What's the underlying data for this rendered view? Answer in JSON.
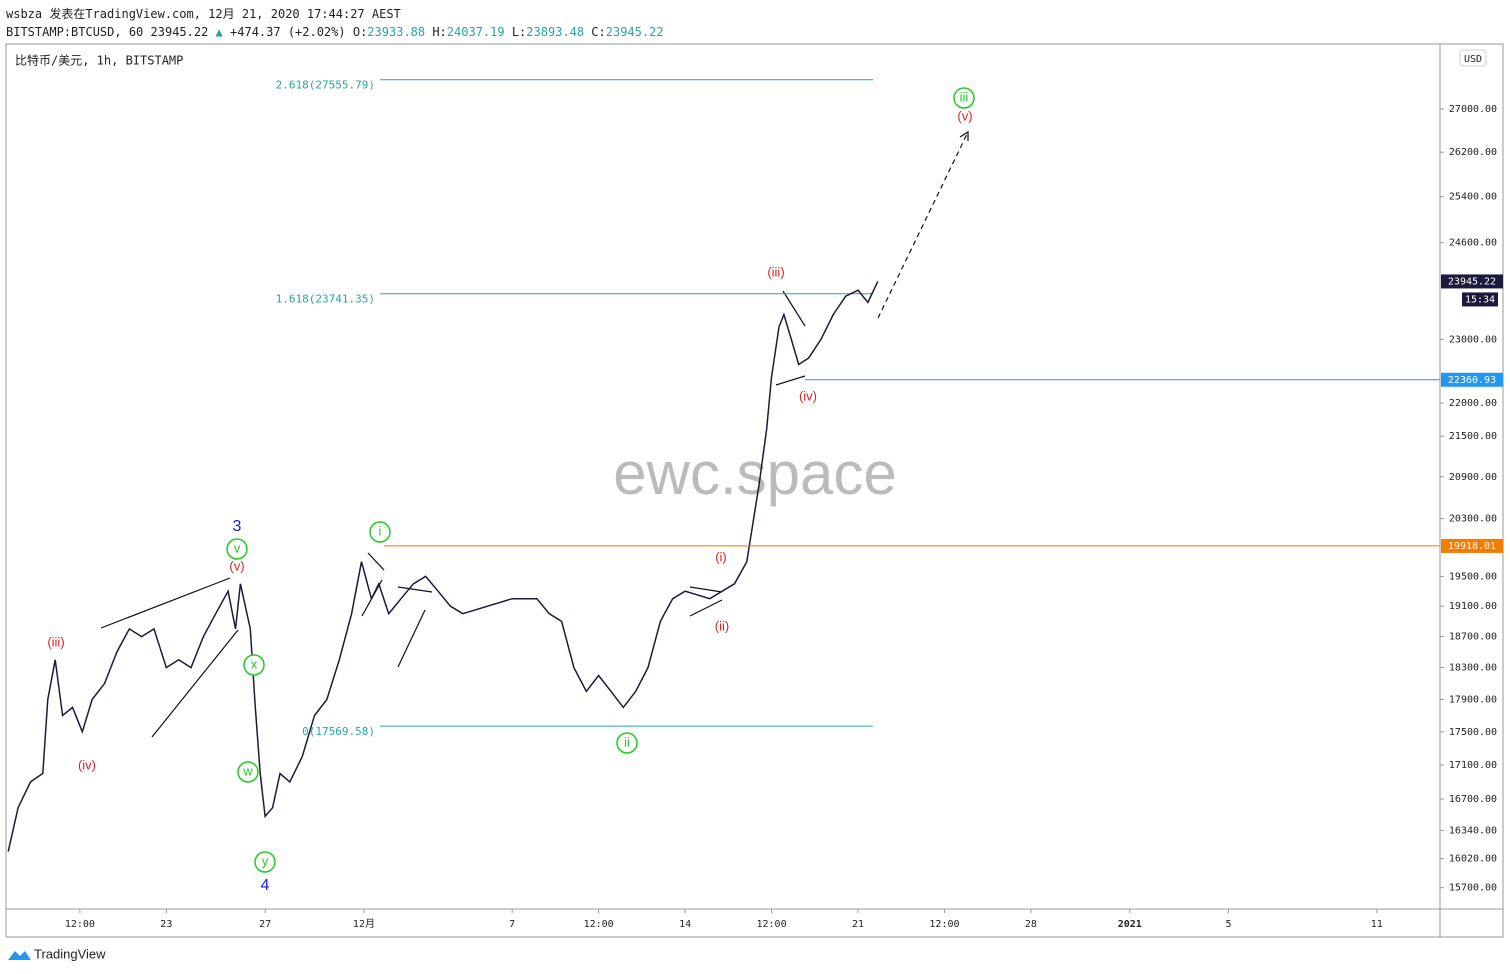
{
  "header": {
    "line1": "wsbza 发表在TradingView.com, 12月 21, 2020 17:44:27 AEST",
    "symbol": "BITSTAMP:BTCUSD, 60",
    "last": "23945.22",
    "change": "+474.37 (+2.02%)",
    "ohlc": [
      {
        "label": "O:",
        "value": "23933.88"
      },
      {
        "label": "H:",
        "value": "24037.19"
      },
      {
        "label": "L:",
        "value": "23893.48"
      },
      {
        "label": "C:",
        "value": "23945.22"
      }
    ]
  },
  "legend": "比特币/美元, 1h, BITSTAMP",
  "currency": "USD",
  "watermark": "ewc.space",
  "countdown": "15:34",
  "footer": "TradingView",
  "chart_data": {
    "type": "line",
    "log": true,
    "color": "#1c1a3c",
    "xlim": [
      -14.45,
      43.56
    ],
    "ylim": [
      15480,
      28230
    ],
    "xticks": [
      {
        "value": -11.5,
        "label": "12:00"
      },
      {
        "value": -8,
        "label": "23"
      },
      {
        "value": -4,
        "label": "27"
      },
      {
        "value": 0,
        "label": "12月"
      },
      {
        "value": 6,
        "label": "7"
      },
      {
        "value": 9.5,
        "label": "12:00"
      },
      {
        "value": 13,
        "label": "14"
      },
      {
        "value": 16.5,
        "label": "12:00"
      },
      {
        "value": 20,
        "label": "21"
      },
      {
        "value": 23.5,
        "label": "12:00"
      },
      {
        "value": 27,
        "label": "28"
      },
      {
        "value": 31,
        "label": "2021"
      },
      {
        "value": 35,
        "label": "5"
      },
      {
        "value": 41,
        "label": "11"
      }
    ],
    "yticks": [
      {
        "value": 15700,
        "label": "15700.00"
      },
      {
        "value": 16020,
        "label": "16020.00"
      },
      {
        "value": 16340,
        "label": "16340.00"
      },
      {
        "value": 16700,
        "label": "16700.00"
      },
      {
        "value": 17100,
        "label": "17100.00"
      },
      {
        "value": 17500,
        "label": "17500.00"
      },
      {
        "value": 17900,
        "label": "17900.00"
      },
      {
        "value": 18300,
        "label": "18300.00"
      },
      {
        "value": 18700,
        "label": "18700.00"
      },
      {
        "value": 19100,
        "label": "19100.00"
      },
      {
        "value": 19500,
        "label": "19500.00"
      },
      {
        "value": 20300,
        "label": "20300.00"
      },
      {
        "value": 20900,
        "label": "20900.00"
      },
      {
        "value": 21500,
        "label": "21500.00"
      },
      {
        "value": 22000,
        "label": "22000.00"
      },
      {
        "value": 23000,
        "label": "23000.00"
      },
      {
        "value": 24600,
        "label": "24600.00"
      },
      {
        "value": 25400,
        "label": "25400.00"
      },
      {
        "value": 26200,
        "label": "26200.00"
      },
      {
        "value": 27000,
        "label": "27000.00"
      }
    ],
    "x": [
      -14.4,
      -14,
      -13.5,
      -13,
      -12.8,
      -12.5,
      -12.2,
      -11.8,
      -11.4,
      -11,
      -10.5,
      -10,
      -9.5,
      -9,
      -8.5,
      -8,
      -7.5,
      -7,
      -6.5,
      -6,
      -5.5,
      -5.2,
      -5,
      -4.6,
      -4.4,
      -4.2,
      -4,
      -3.7,
      -3.4,
      -3,
      -2.5,
      -2,
      -1.5,
      -1,
      -0.5,
      -0.1,
      0.3,
      0.6,
      1,
      1.5,
      2,
      2.5,
      3,
      3.5,
      4,
      5,
      6,
      7,
      7.5,
      8,
      8.5,
      9,
      9.5,
      10,
      10.5,
      11,
      11.5,
      12,
      12.5,
      13,
      14,
      14.5,
      15,
      15.5,
      16,
      16.3,
      16.5,
      16.8,
      17,
      17.3,
      17.6,
      18,
      18.5,
      19,
      19.5,
      20,
      20.4,
      20.8
    ],
    "series": [
      {
        "name": "BTCUSD",
        "values": [
          16100,
          16600,
          16900,
          17000,
          17900,
          18400,
          17700,
          17800,
          17500,
          17900,
          18100,
          18500,
          18800,
          18700,
          18800,
          18300,
          18400,
          18300,
          18700,
          19000,
          19300,
          18800,
          19400,
          18800,
          17800,
          17000,
          16500,
          16600,
          17000,
          16900,
          17200,
          17700,
          17900,
          18400,
          19000,
          19700,
          19200,
          19400,
          19000,
          19200,
          19400,
          19500,
          19300,
          19100,
          19000,
          19100,
          19200,
          19200,
          19000,
          18900,
          18300,
          18000,
          18200,
          18000,
          17800,
          18000,
          18300,
          18900,
          19200,
          19300,
          19200,
          19300,
          19400,
          19700,
          20800,
          21600,
          22400,
          23200,
          23400,
          23000,
          22600,
          22700,
          23000,
          23400,
          23700,
          23800,
          23600,
          23945.22
        ]
      }
    ],
    "fib": [
      {
        "label": "2.618(27555.79)",
        "value": 27555.79
      },
      {
        "label": "1.618(23741.35)",
        "value": 23741.35
      },
      {
        "label": "0(17569.58)",
        "value": 17569.58
      }
    ],
    "price_lines": [
      {
        "value": 22360.93,
        "color": "#2196f3"
      },
      {
        "value": 19918.01,
        "color": "#f57c00"
      }
    ],
    "current_price": 23945.22,
    "waves": [
      {
        "text": "3",
        "color": "#1a1adb"
      },
      {
        "text": "v",
        "color": "#22cc22"
      },
      {
        "text": "(v)",
        "color": "#e02020"
      },
      {
        "text": "(iii)",
        "color": "#e02020"
      },
      {
        "text": "(iv)",
        "color": "#e02020"
      },
      {
        "text": "x",
        "color": "#22cc22"
      },
      {
        "text": "w",
        "color": "#22cc22"
      },
      {
        "text": "y",
        "color": "#22cc22"
      },
      {
        "text": "4",
        "color": "#1a1adb"
      },
      {
        "text": "i",
        "color": "#22cc22"
      },
      {
        "text": "ii",
        "color": "#22cc22"
      },
      {
        "text": "(i)",
        "color": "#e02020"
      },
      {
        "text": "(ii)",
        "color": "#e02020"
      },
      {
        "text": "(iii)",
        "color": "#e02020"
      },
      {
        "text": "(iv)",
        "color": "#e02020"
      },
      {
        "text": "iii",
        "color": "#22cc22"
      },
      {
        "text": "(v)",
        "color": "#e02020"
      }
    ]
  }
}
